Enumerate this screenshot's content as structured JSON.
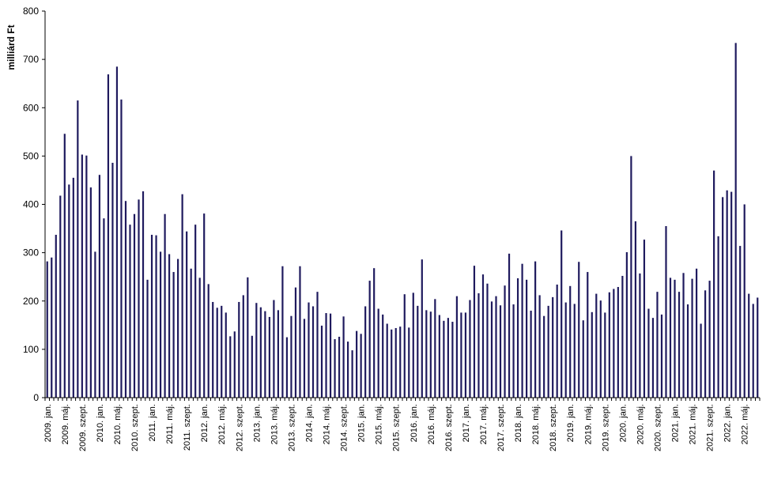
{
  "chart_data": {
    "type": "bar",
    "ylabel": "milliárd Ft",
    "xlabel": "",
    "title": "",
    "ylim": [
      0,
      800
    ],
    "yticks": [
      0,
      100,
      200,
      300,
      400,
      500,
      600,
      700,
      800
    ],
    "grid": false,
    "colors": {
      "bar": "#1f1a5e",
      "axis": "#000000"
    },
    "x_tick_labels": [
      {
        "index": 0,
        "label": "2009. jan."
      },
      {
        "index": 4,
        "label": "2009. máj."
      },
      {
        "index": 8,
        "label": "2009. szept."
      },
      {
        "index": 12,
        "label": "2010. jan."
      },
      {
        "index": 16,
        "label": "2010. máj."
      },
      {
        "index": 20,
        "label": "2010. szept."
      },
      {
        "index": 24,
        "label": "2011. jan."
      },
      {
        "index": 28,
        "label": "2011. máj."
      },
      {
        "index": 32,
        "label": "2011. szept."
      },
      {
        "index": 36,
        "label": "2012. jan."
      },
      {
        "index": 40,
        "label": "2012. máj."
      },
      {
        "index": 44,
        "label": "2012. szept."
      },
      {
        "index": 48,
        "label": "2013. jan."
      },
      {
        "index": 52,
        "label": "2013. máj."
      },
      {
        "index": 56,
        "label": "2013. szept."
      },
      {
        "index": 60,
        "label": "2014. jan."
      },
      {
        "index": 64,
        "label": "2014. máj."
      },
      {
        "index": 68,
        "label": "2014. szept."
      },
      {
        "index": 72,
        "label": "2015. jan."
      },
      {
        "index": 76,
        "label": "2015. máj."
      },
      {
        "index": 80,
        "label": "2015. szept."
      },
      {
        "index": 84,
        "label": "2016. jan."
      },
      {
        "index": 88,
        "label": "2016. máj."
      },
      {
        "index": 92,
        "label": "2016. szept."
      },
      {
        "index": 96,
        "label": "2017. jan."
      },
      {
        "index": 100,
        "label": "2017. máj."
      },
      {
        "index": 104,
        "label": "2017. szept."
      },
      {
        "index": 108,
        "label": "2018. jan."
      },
      {
        "index": 112,
        "label": "2018. máj."
      },
      {
        "index": 116,
        "label": "2018. szept."
      },
      {
        "index": 120,
        "label": "2019. jan."
      },
      {
        "index": 124,
        "label": "2019. máj."
      },
      {
        "index": 128,
        "label": "2019. szept."
      },
      {
        "index": 132,
        "label": "2020. jan."
      },
      {
        "index": 136,
        "label": "2020. máj."
      },
      {
        "index": 140,
        "label": "2020. szept."
      },
      {
        "index": 144,
        "label": "2021. jan."
      },
      {
        "index": 148,
        "label": "2021. máj."
      },
      {
        "index": 152,
        "label": "2021. szept."
      },
      {
        "index": 156,
        "label": "2022. jan."
      },
      {
        "index": 160,
        "label": "2022. máj."
      }
    ],
    "values": [
      282,
      290,
      337,
      418,
      546,
      441,
      455,
      615,
      503,
      501,
      435,
      302,
      461,
      371,
      669,
      486,
      685,
      617,
      407,
      358,
      380,
      410,
      427,
      244,
      337,
      336,
      302,
      380,
      297,
      260,
      287,
      421,
      344,
      267,
      358,
      248,
      381,
      235,
      198,
      186,
      190,
      176,
      127,
      137,
      198,
      212,
      249,
      128,
      196,
      187,
      179,
      167,
      202,
      181,
      272,
      125,
      169,
      228,
      272,
      163,
      197,
      189,
      219,
      149,
      175,
      174,
      121,
      126,
      168,
      116,
      98,
      138,
      132,
      189,
      242,
      268,
      184,
      172,
      153,
      141,
      144,
      147,
      214,
      145,
      217,
      190,
      286,
      181,
      178,
      204,
      171,
      159,
      165,
      157,
      210,
      176,
      176,
      202,
      273,
      216,
      255,
      236,
      199,
      210,
      191,
      232,
      298,
      193,
      247,
      277,
      244,
      180,
      282,
      212,
      169,
      190,
      208,
      234,
      346,
      197,
      231,
      194,
      281,
      160,
      260,
      177,
      215,
      201,
      176,
      218,
      225,
      229,
      252,
      301,
      500,
      365,
      257,
      327,
      184,
      165,
      219,
      172,
      355,
      248,
      244,
      219,
      258,
      193,
      246,
      267,
      153,
      222,
      242,
      470,
      334,
      415,
      429,
      426,
      734,
      314,
      400,
      215,
      194,
      207
    ]
  }
}
